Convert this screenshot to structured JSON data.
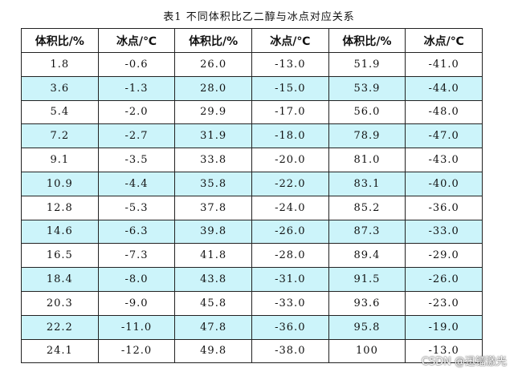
{
  "caption": "表1 不同体积比乙二醇与冰点对应关系",
  "headers": [
    "体积比/%",
    "冰点/℃",
    "体积比/%",
    "冰点/℃",
    "体积比/%",
    "冰点/℃"
  ],
  "rows": [
    [
      "1.8",
      "-0.6",
      "26.0",
      "-13.0",
      "51.9",
      "-41.0"
    ],
    [
      "3.6",
      "-1.3",
      "28.0",
      "-15.0",
      "53.9",
      "-44.0"
    ],
    [
      "5.4",
      "-2.0",
      "29.9",
      "-17.0",
      "56.0",
      "-48.0"
    ],
    [
      "7.2",
      "-2.7",
      "31.9",
      "-18.0",
      "78.9",
      "-47.0"
    ],
    [
      "9.1",
      "-3.5",
      "33.8",
      "-20.0",
      "81.0",
      "-43.0"
    ],
    [
      "10.9",
      "-4.4",
      "35.8",
      "-22.0",
      "83.1",
      "-40.0"
    ],
    [
      "12.8",
      "-5.3",
      "37.8",
      "-24.0",
      "85.2",
      "-36.0"
    ],
    [
      "14.6",
      "-6.3",
      "39.8",
      "-26.0",
      "87.3",
      "-33.0"
    ],
    [
      "16.5",
      "-7.3",
      "41.8",
      "-28.0",
      "89.4",
      "-29.0"
    ],
    [
      "18.4",
      "-8.0",
      "43.8",
      "-31.0",
      "91.5",
      "-26.0"
    ],
    [
      "20.3",
      "-9.0",
      "45.8",
      "-33.0",
      "93.6",
      "-23.0"
    ],
    [
      "22.2",
      "-11.0",
      "47.8",
      "-36.0",
      "95.8",
      "-19.0"
    ],
    [
      "24.1",
      "-12.0",
      "49.8",
      "-38.0",
      "100",
      "-13.0"
    ]
  ],
  "colors": {
    "alt_row": "#ccf4fa",
    "border": "#222222"
  },
  "watermark": "CSDN @迅镭激光"
}
